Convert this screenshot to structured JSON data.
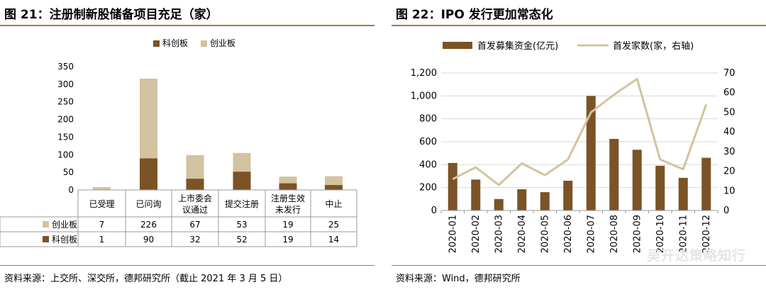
{
  "left": {
    "title": "图 21：注册制新股储备项目充足（家）",
    "source": "资料来源：上交所、深交所，德邦研究所（截止 2021 年 3 月 5 日）"
  },
  "right": {
    "title": "图 22：IPO 发行更加常态化",
    "source": "资料来源：Wind，德邦研究所"
  },
  "watermark": "吴开达策略知行",
  "chart_data": [
    {
      "type": "bar",
      "stacked": true,
      "categories": [
        "已受理",
        "已问询",
        "上市委会议通过",
        "提交注册",
        "注册生效未发行",
        "中止"
      ],
      "category_lines": [
        [
          "已受理"
        ],
        [
          "已问询"
        ],
        [
          "上市委会",
          "议通过"
        ],
        [
          "提交注册"
        ],
        [
          "注册生效",
          "未发行"
        ],
        [
          "中止"
        ]
      ],
      "series": [
        {
          "name": "科创板",
          "values": [
            1,
            90,
            32,
            52,
            19,
            14
          ],
          "color": "#7b5326"
        },
        {
          "name": "创业板",
          "values": [
            7,
            226,
            67,
            53,
            19,
            25
          ],
          "color": "#d3c3a0"
        }
      ],
      "ylim": [
        0,
        350
      ],
      "yticks": [
        0,
        50,
        100,
        150,
        200,
        250,
        300,
        350
      ],
      "legend_position": "top",
      "data_table": true
    },
    {
      "type": "bar+line",
      "categories": [
        "2020-01",
        "2020-02",
        "2020-03",
        "2020-04",
        "2020-05",
        "2020-06",
        "2020-07",
        "2020-08",
        "2020-09",
        "2020-10",
        "2020-11",
        "2020-12"
      ],
      "bar_series": {
        "name": "首发募集资金(亿元)",
        "values": [
          415,
          270,
          100,
          185,
          160,
          260,
          1000,
          625,
          530,
          390,
          285,
          460
        ],
        "color": "#7b5326"
      },
      "line_series": {
        "name": "首发家数(家，右轴)",
        "values": [
          16,
          22,
          13,
          24,
          18,
          26,
          50,
          59,
          67,
          26,
          21,
          54
        ],
        "color": "#d3c3a0"
      },
      "ylim_left": [
        0,
        1200
      ],
      "yticks_left": [
        "0",
        "200",
        "400",
        "600",
        "800",
        "1,000",
        "1,200"
      ],
      "ylim_right": [
        0,
        70
      ],
      "yticks_right": [
        "0",
        "10",
        "20",
        "30",
        "40",
        "50",
        "60",
        "70"
      ],
      "legend_position": "top"
    }
  ]
}
